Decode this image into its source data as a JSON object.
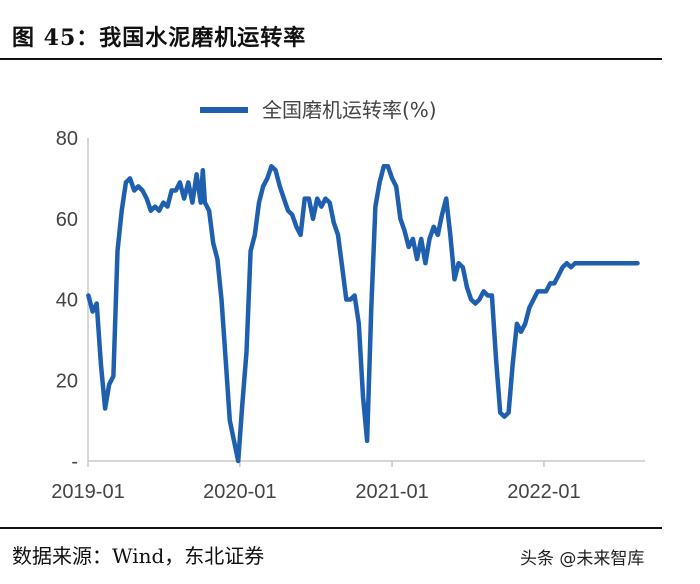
{
  "header": {
    "figure_title": "图 45：我国水泥磨机运转率"
  },
  "footer": {
    "source": "数据来源：Wind，东北证券",
    "watermark": "头条 @未来智库"
  },
  "colors": {
    "series": "#1f5fb0",
    "axis": "#c8c8c8",
    "text": "#444444"
  },
  "chart_data": {
    "type": "line",
    "title": "",
    "xlabel": "",
    "ylabel": "",
    "ylim": [
      0,
      80
    ],
    "yticks": [
      {
        "value": 0,
        "label": "-"
      },
      {
        "value": 20,
        "label": "20"
      },
      {
        "value": 40,
        "label": "40"
      },
      {
        "value": 60,
        "label": "60"
      },
      {
        "value": 80,
        "label": "80"
      }
    ],
    "xticks": [
      "2019-01",
      "2020-01",
      "2021-01",
      "2022-01"
    ],
    "grid": false,
    "legend": "top",
    "series": [
      {
        "name": "全国磨机运转率(%)",
        "x": [
          "2019-01-02",
          "2019-01-12",
          "2019-01-22",
          "2019-02-01",
          "2019-02-11",
          "2019-02-21",
          "2019-03-03",
          "2019-03-13",
          "2019-03-23",
          "2019-04-02",
          "2019-04-12",
          "2019-04-22",
          "2019-05-02",
          "2019-05-12",
          "2019-05-22",
          "2019-06-01",
          "2019-06-11",
          "2019-06-21",
          "2019-07-01",
          "2019-07-11",
          "2019-07-21",
          "2019-07-31",
          "2019-08-10",
          "2019-08-20",
          "2019-08-30",
          "2019-09-09",
          "2019-09-19",
          "2019-09-29",
          "2019-10-04",
          "2019-10-09",
          "2019-10-19",
          "2019-10-29",
          "2019-11-08",
          "2019-11-18",
          "2019-11-28",
          "2019-12-08",
          "2019-12-18",
          "2019-12-28",
          "2020-01-07",
          "2020-01-17",
          "2020-01-27",
          "2020-02-06",
          "2020-02-16",
          "2020-02-26",
          "2020-03-07",
          "2020-03-17",
          "2020-03-27",
          "2020-04-06",
          "2020-04-16",
          "2020-04-26",
          "2020-05-06",
          "2020-05-16",
          "2020-05-26",
          "2020-06-05",
          "2020-06-15",
          "2020-06-25",
          "2020-07-05",
          "2020-07-15",
          "2020-07-25",
          "2020-08-04",
          "2020-08-14",
          "2020-08-24",
          "2020-09-03",
          "2020-09-13",
          "2020-09-23",
          "2020-10-03",
          "2020-10-13",
          "2020-10-23",
          "2020-11-02",
          "2020-11-12",
          "2020-11-22",
          "2020-12-02",
          "2020-12-12",
          "2020-12-22",
          "2021-01-01",
          "2021-01-11",
          "2021-01-21",
          "2021-01-31",
          "2021-02-10",
          "2021-02-20",
          "2021-03-02",
          "2021-03-12",
          "2021-03-22",
          "2021-04-01",
          "2021-04-11",
          "2021-04-21",
          "2021-05-01",
          "2021-05-11",
          "2021-05-21",
          "2021-05-31",
          "2021-06-10",
          "2021-06-20",
          "2021-06-30",
          "2021-07-10",
          "2021-07-20",
          "2021-07-30",
          "2021-08-09",
          "2021-08-19",
          "2021-08-29",
          "2021-09-08",
          "2021-09-18",
          "2021-09-28",
          "2021-10-08",
          "2021-10-18",
          "2021-10-28",
          "2021-11-07",
          "2021-11-17",
          "2021-11-27",
          "2021-12-07",
          "2021-12-17",
          "2021-12-27",
          "2022-01-06",
          "2022-01-16",
          "2022-01-26",
          "2022-02-05",
          "2022-02-15",
          "2022-02-25",
          "2022-03-07",
          "2022-03-17",
          "2022-03-27",
          "2022-04-06",
          "2022-04-16",
          "2022-04-26",
          "2022-05-06",
          "2022-05-16",
          "2022-05-26",
          "2022-06-05",
          "2022-06-15",
          "2022-06-25",
          "2022-07-05",
          "2022-07-15",
          "2022-07-25",
          "2022-08-04",
          "2022-08-14"
        ],
        "values": [
          41,
          37,
          39,
          24,
          13,
          19,
          21,
          52,
          62,
          69,
          70,
          67,
          68,
          67,
          65,
          62,
          63,
          62,
          64,
          63,
          67,
          67,
          69,
          65,
          69,
          64,
          71,
          64,
          72,
          64,
          62,
          54,
          50,
          40,
          25,
          10,
          5,
          0,
          14,
          27,
          52,
          56,
          64,
          68,
          70,
          73,
          72,
          68,
          65,
          62,
          61,
          58,
          56,
          65,
          65,
          60,
          65,
          63,
          65,
          64,
          59,
          56,
          48,
          40,
          40,
          41,
          34,
          16,
          5,
          38,
          63,
          69,
          73,
          73,
          70,
          68,
          60,
          57,
          53,
          55,
          50,
          55,
          49,
          55,
          58,
          56,
          61,
          65,
          56,
          45,
          49,
          48,
          43,
          40,
          39,
          40,
          42,
          41,
          41,
          25,
          12,
          11,
          12,
          24,
          34,
          32,
          34,
          38,
          40,
          42,
          42,
          42,
          44,
          44,
          46,
          48,
          49,
          48,
          49,
          49,
          49,
          49,
          49,
          49,
          49,
          49,
          49,
          49,
          49,
          49,
          49,
          49,
          49,
          49
        ]
      }
    ]
  }
}
